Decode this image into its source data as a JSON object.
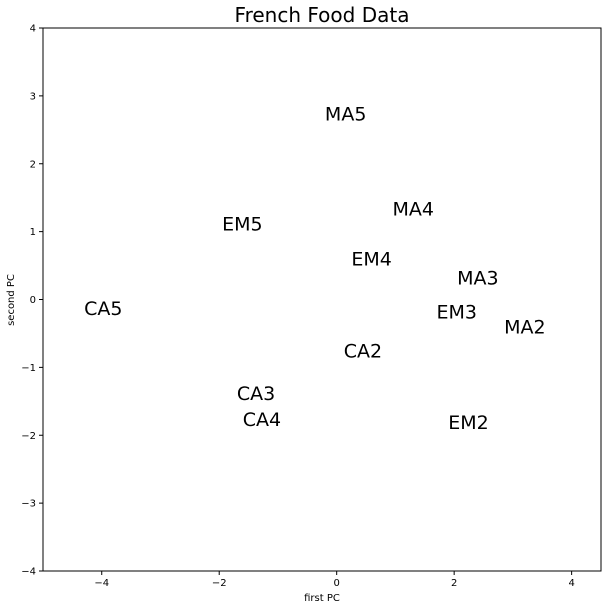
{
  "chart_data": {
    "type": "scatter",
    "title": "French Food Data",
    "xlabel": "first PC",
    "ylabel": "second PC",
    "xlim": [
      -5.0,
      4.5
    ],
    "ylim": [
      -4,
      4
    ],
    "xticks": [
      -4,
      -2,
      0,
      2,
      4
    ],
    "yticks": [
      -4,
      -3,
      -2,
      -1,
      0,
      1,
      2,
      3,
      4
    ],
    "grid": false,
    "points": [
      {
        "label": "MA5",
        "x": -0.2,
        "y": 2.72
      },
      {
        "label": "MA4",
        "x": 0.95,
        "y": 1.32
      },
      {
        "label": "EM5",
        "x": -1.95,
        "y": 1.1
      },
      {
        "label": "EM4",
        "x": 0.25,
        "y": 0.58
      },
      {
        "label": "MA3",
        "x": 2.05,
        "y": 0.3
      },
      {
        "label": "CA5",
        "x": -4.3,
        "y": -0.15
      },
      {
        "label": "EM3",
        "x": 1.7,
        "y": -0.2
      },
      {
        "label": "MA2",
        "x": 2.85,
        "y": -0.42
      },
      {
        "label": "CA2",
        "x": 0.12,
        "y": -0.77
      },
      {
        "label": "CA3",
        "x": -1.7,
        "y": -1.4
      },
      {
        "label": "CA4",
        "x": -1.6,
        "y": -1.78
      },
      {
        "label": "EM2",
        "x": 1.9,
        "y": -1.83
      }
    ]
  }
}
